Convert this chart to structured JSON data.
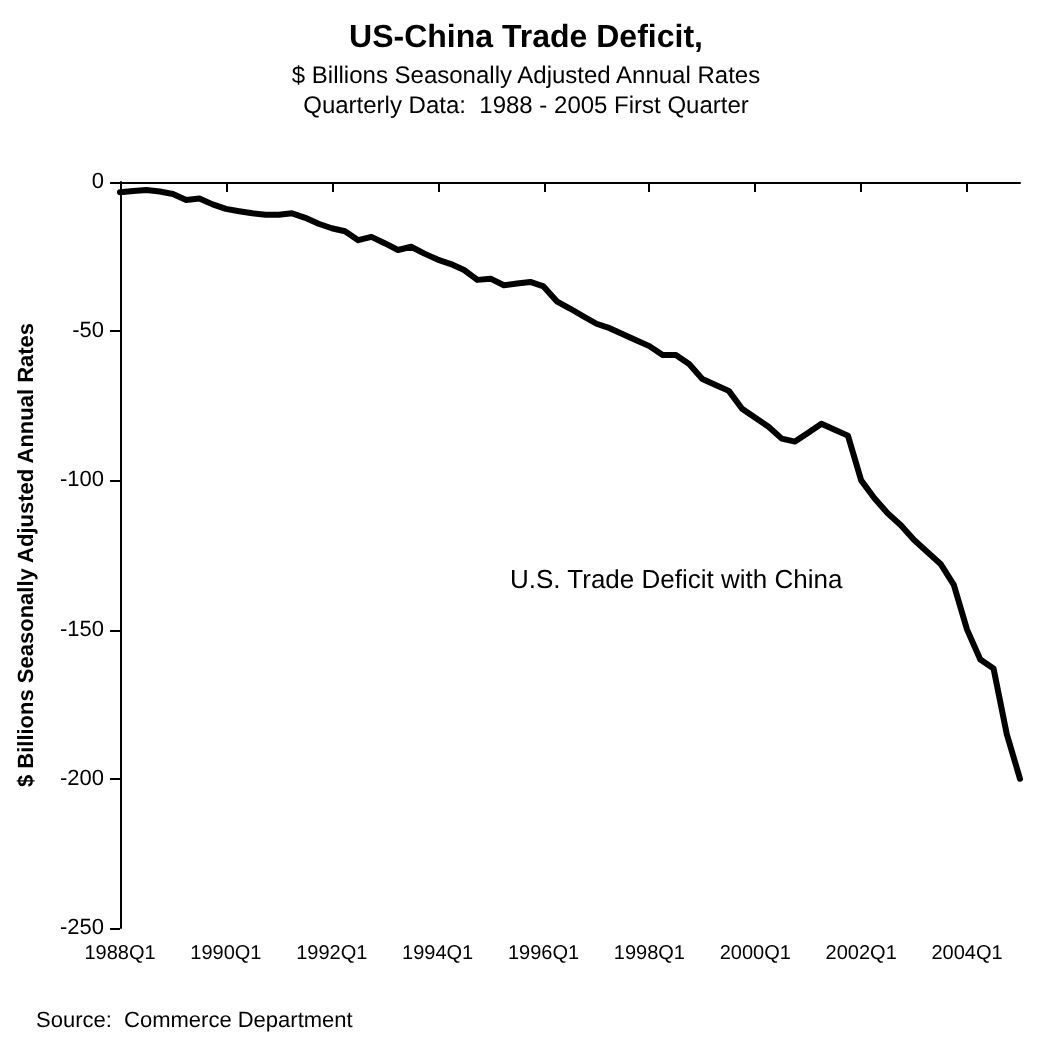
{
  "chart_data": {
    "type": "line",
    "title": "US-China Trade Deficit,",
    "subtitle": "$ Billions Seasonally Adjusted Annual Rates\nQuarterly Data:  1988 - 2005 First Quarter",
    "ylabel": "$ Billions Seasonally Adjusted Annual Rates",
    "annotations": [
      "Source:  Commerce Department"
    ],
    "categories": [
      "1988Q1",
      null,
      null,
      null,
      null,
      null,
      null,
      null,
      "1990Q1",
      null,
      null,
      null,
      null,
      null,
      null,
      null,
      "1992Q1",
      null,
      null,
      null,
      null,
      null,
      null,
      null,
      "1994Q1",
      null,
      null,
      null,
      null,
      null,
      null,
      null,
      "1996Q1",
      null,
      null,
      null,
      null,
      null,
      null,
      null,
      "1998Q1",
      null,
      null,
      null,
      null,
      null,
      null,
      null,
      "2000Q1",
      null,
      null,
      null,
      null,
      null,
      null,
      null,
      "2002Q1",
      null,
      null,
      null,
      null,
      null,
      null,
      null,
      "2004Q1",
      null,
      null,
      null,
      null
    ],
    "series": [
      {
        "name": "U.S. Trade Deficit with China",
        "color": "#000000",
        "values": [
          -3.4,
          -3,
          -2.7,
          -3.2,
          -4,
          -6,
          -5.5,
          -7.5,
          -9,
          -9.8,
          -10.5,
          -11,
          -11,
          -10.5,
          -12,
          -14,
          -15.5,
          -16.5,
          -19.5,
          -18.4,
          -20.5,
          -22.8,
          -21.7,
          -24,
          -26,
          -27.5,
          -29.5,
          -32.8,
          -32.4,
          -34.6,
          -34,
          -33.5,
          -35,
          -40,
          -42.4,
          -45,
          -47.5,
          -49,
          -51,
          -53,
          -55,
          -58,
          -58,
          -61,
          -66,
          -68,
          -70,
          -76,
          -79,
          -82,
          -86,
          -87,
          -84,
          -81,
          -83,
          -85,
          -100,
          -106,
          -111,
          -115,
          -120,
          -124,
          -128,
          -135,
          -150,
          -160,
          -163,
          -185,
          -200
        ]
      }
    ],
    "ylim": [
      -250,
      0
    ],
    "yticks": [
      0,
      -50,
      -100,
      -150,
      -200,
      -250
    ],
    "grid": false,
    "legend": false,
    "marker": "none",
    "line_style": "solid"
  }
}
